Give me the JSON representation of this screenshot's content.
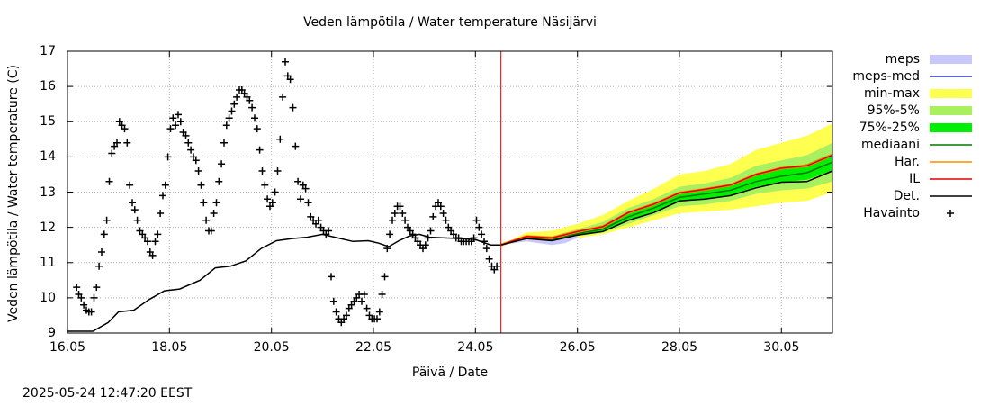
{
  "chart_data": {
    "type": "line",
    "title": "Veden lämpötila / Water temperature Näsijärvi",
    "xlabel": "Päivä / Date",
    "ylabel": "Veden lämpötila / Water temperature (C)",
    "xlim": [
      16.0,
      31.0
    ],
    "ylim": [
      9,
      17
    ],
    "x_ticks": [
      {
        "x": 16,
        "label": "16.05"
      },
      {
        "x": 18,
        "label": "18.05"
      },
      {
        "x": 20,
        "label": "20.05"
      },
      {
        "x": 22,
        "label": "22.05"
      },
      {
        "x": 24,
        "label": "24.05"
      },
      {
        "x": 26,
        "label": "26.05"
      },
      {
        "x": 28,
        "label": "28.05"
      },
      {
        "x": 30,
        "label": "30.05"
      }
    ],
    "y_ticks": [
      9,
      10,
      11,
      12,
      13,
      14,
      15,
      16,
      17
    ],
    "forecast_start": 24.5,
    "legend": [
      {
        "label": "meps",
        "kind": "band",
        "color": "#c8c8ff"
      },
      {
        "label": "meps-med",
        "kind": "line",
        "color": "#3030c0"
      },
      {
        "label": "min-max",
        "kind": "band",
        "color": "#ffff50"
      },
      {
        "label": "95%-5%",
        "kind": "band",
        "color": "#a8f060"
      },
      {
        "label": "75%-25%",
        "kind": "band",
        "color": "#00ee00"
      },
      {
        "label": "mediaani",
        "kind": "line",
        "color": "#007800"
      },
      {
        "label": "Har.",
        "kind": "line",
        "color": "#ff8c00"
      },
      {
        "label": "IL",
        "kind": "line",
        "color": "#e00000"
      },
      {
        "label": "Det.",
        "kind": "line",
        "color": "#000000"
      },
      {
        "label": "Havainto",
        "kind": "marker",
        "color": "#000000"
      }
    ],
    "series": {
      "det_history": {
        "x": [
          16.0,
          16.2,
          16.5,
          16.8,
          17.0,
          17.3,
          17.6,
          17.9,
          18.2,
          18.6,
          18.9,
          19.2,
          19.5,
          19.8,
          20.1,
          20.4,
          20.7,
          21.0,
          21.3,
          21.6,
          21.9,
          22.1,
          22.3,
          22.5,
          22.7,
          22.9,
          23.1,
          23.4,
          23.7,
          24.0,
          24.3,
          24.5
        ],
        "y": [
          9.05,
          9.05,
          9.05,
          9.3,
          9.6,
          9.65,
          9.95,
          10.2,
          10.25,
          10.5,
          10.85,
          10.9,
          11.05,
          11.4,
          11.62,
          11.68,
          11.72,
          11.8,
          11.7,
          11.6,
          11.62,
          11.55,
          11.45,
          11.62,
          11.75,
          11.8,
          11.72,
          11.7,
          11.68,
          11.65,
          11.5,
          11.5
        ]
      },
      "forecast_x": [
        24.5,
        25.0,
        25.5,
        26.0,
        26.5,
        27.0,
        27.5,
        28.0,
        28.5,
        29.0,
        29.5,
        30.0,
        30.5,
        31.0
      ],
      "median": [
        11.5,
        11.7,
        11.65,
        11.82,
        11.95,
        12.3,
        12.55,
        12.85,
        12.95,
        13.05,
        13.3,
        13.45,
        13.55,
        13.85
      ],
      "min_max": {
        "low": [
          11.5,
          11.6,
          11.55,
          11.7,
          11.8,
          12.0,
          12.2,
          12.4,
          12.45,
          12.5,
          12.6,
          12.7,
          12.75,
          13.0
        ],
        "high": [
          11.5,
          11.85,
          11.9,
          12.1,
          12.35,
          12.75,
          13.1,
          13.5,
          13.6,
          13.8,
          14.2,
          14.4,
          14.6,
          14.95
        ]
      },
      "p95_p5": {
        "low": [
          11.5,
          11.65,
          11.6,
          11.75,
          11.85,
          12.1,
          12.35,
          12.6,
          12.65,
          12.75,
          12.95,
          13.05,
          13.1,
          13.3
        ],
        "high": [
          11.5,
          11.78,
          11.75,
          11.95,
          12.15,
          12.55,
          12.8,
          13.15,
          13.25,
          13.4,
          13.75,
          13.9,
          14.05,
          14.4
        ]
      },
      "p75_p25": {
        "low": [
          11.5,
          11.68,
          11.62,
          11.78,
          11.9,
          12.2,
          12.45,
          12.75,
          12.82,
          12.92,
          13.15,
          13.28,
          13.35,
          13.62
        ],
        "high": [
          11.5,
          11.74,
          11.7,
          11.88,
          12.05,
          12.45,
          12.68,
          13.0,
          13.1,
          13.22,
          13.52,
          13.68,
          13.8,
          14.1
        ]
      },
      "il": [
        11.5,
        11.74,
        11.7,
        11.88,
        12.02,
        12.42,
        12.66,
        12.98,
        13.08,
        13.2,
        13.5,
        13.68,
        13.75,
        14.05
      ],
      "det_forecast": [
        11.5,
        11.68,
        11.62,
        11.78,
        11.88,
        12.2,
        12.42,
        12.75,
        12.8,
        12.9,
        13.12,
        13.28,
        13.3,
        13.6
      ],
      "meps": {
        "x": [
          24.5,
          24.75,
          25.0,
          25.25,
          25.5,
          25.75,
          26.0
        ],
        "low": [
          11.5,
          11.55,
          11.6,
          11.55,
          11.5,
          11.55,
          11.7
        ],
        "high": [
          11.5,
          11.65,
          11.75,
          11.7,
          11.7,
          11.75,
          11.85
        ]
      },
      "observations": {
        "x": [
          16.18,
          16.22,
          16.27,
          16.32,
          16.37,
          16.42,
          16.47,
          16.52,
          16.57,
          16.62,
          16.67,
          16.72,
          16.77,
          16.82,
          16.87,
          16.92,
          16.97,
          17.02,
          17.07,
          17.12,
          17.17,
          17.22,
          17.27,
          17.32,
          17.37,
          17.42,
          17.47,
          17.52,
          17.57,
          17.62,
          17.67,
          17.72,
          17.77,
          17.82,
          17.87,
          17.92,
          17.97,
          18.02,
          18.07,
          18.12,
          18.17,
          18.22,
          18.27,
          18.32,
          18.37,
          18.42,
          18.47,
          18.52,
          18.57,
          18.62,
          18.67,
          18.72,
          18.77,
          18.82,
          18.87,
          18.92,
          18.97,
          19.02,
          19.07,
          19.12,
          19.17,
          19.22,
          19.27,
          19.32,
          19.37,
          19.42,
          19.47,
          19.52,
          19.57,
          19.62,
          19.67,
          19.72,
          19.77,
          19.82,
          19.87,
          19.92,
          19.97,
          20.02,
          20.07,
          20.12,
          20.17,
          20.22,
          20.27,
          20.32,
          20.37,
          20.42,
          20.47,
          20.52,
          20.57,
          20.62,
          20.67,
          20.72,
          20.77,
          20.82,
          20.87,
          20.92,
          20.97,
          21.02,
          21.07,
          21.12,
          21.17,
          21.22,
          21.27,
          21.32,
          21.37,
          21.42,
          21.47,
          21.52,
          21.57,
          21.62,
          21.67,
          21.72,
          21.77,
          21.82,
          21.87,
          21.92,
          21.97,
          22.02,
          22.07,
          22.12,
          22.17,
          22.22,
          22.27,
          22.32,
          22.37,
          22.42,
          22.47,
          22.52,
          22.57,
          22.62,
          22.67,
          22.72,
          22.77,
          22.82,
          22.87,
          22.92,
          22.97,
          23.02,
          23.07,
          23.12,
          23.17,
          23.22,
          23.27,
          23.32,
          23.37,
          23.42,
          23.47,
          23.52,
          23.57,
          23.62,
          23.67,
          23.72,
          23.77,
          23.82,
          23.87,
          23.92,
          23.97,
          24.02,
          24.07,
          24.12,
          24.17,
          24.22
        ],
        "y": [
          10.3,
          10.1,
          10.0,
          9.8,
          9.65,
          9.6,
          9.6,
          10.0,
          10.3,
          10.9,
          11.3,
          11.8,
          12.2,
          13.3,
          14.1,
          14.3,
          14.4,
          15.0,
          14.9,
          14.8,
          14.4,
          13.2,
          12.7,
          12.5,
          12.2,
          11.9,
          11.8,
          11.7,
          11.6,
          11.3,
          11.2,
          11.6,
          11.8,
          12.4,
          12.9,
          13.2,
          14.0,
          14.8,
          15.1,
          14.9,
          15.2,
          15.0,
          14.7,
          14.6,
          14.4,
          14.2,
          14.0,
          13.9,
          13.6,
          13.2,
          12.7,
          12.2,
          11.9,
          11.9,
          12.4,
          12.7,
          13.3,
          13.8,
          14.4,
          14.9,
          15.1,
          15.3,
          15.5,
          15.7,
          15.9,
          15.9,
          15.8,
          15.7,
          15.6,
          15.4,
          15.1,
          14.8,
          14.2,
          13.6,
          13.2,
          12.8,
          12.6,
          12.7,
          13.0,
          13.6,
          14.5,
          15.7,
          16.7,
          16.3,
          16.2,
          15.4,
          14.3,
          13.3,
          12.8,
          13.2,
          13.1,
          12.7,
          12.3,
          12.2,
          12.1,
          12.2,
          12.0,
          11.9,
          11.8,
          11.9,
          10.6,
          9.9,
          9.6,
          9.4,
          9.3,
          9.4,
          9.5,
          9.7,
          9.8,
          9.9,
          10.0,
          10.1,
          9.9,
          10.1,
          9.7,
          9.5,
          9.4,
          9.4,
          9.4,
          9.6,
          10.1,
          10.6,
          11.4,
          11.8,
          12.2,
          12.4,
          12.6,
          12.6,
          12.4,
          12.2,
          12.0,
          11.9,
          11.8,
          11.7,
          11.6,
          11.5,
          11.4,
          11.5,
          11.7,
          11.9,
          12.3,
          12.6,
          12.7,
          12.6,
          12.4,
          12.2,
          12.0,
          11.9,
          11.8,
          11.7,
          11.7,
          11.6,
          11.6,
          11.6,
          11.6,
          11.6,
          11.7,
          12.2,
          12.0,
          11.8,
          11.6,
          11.4
        ]
      },
      "observations_tail": {
        "x": [
          24.27,
          24.32,
          24.37,
          24.42
        ],
        "y": [
          11.1,
          10.9,
          10.8,
          10.9
        ]
      }
    }
  },
  "timestamp": "2025-05-24 12:47:20 EEST"
}
